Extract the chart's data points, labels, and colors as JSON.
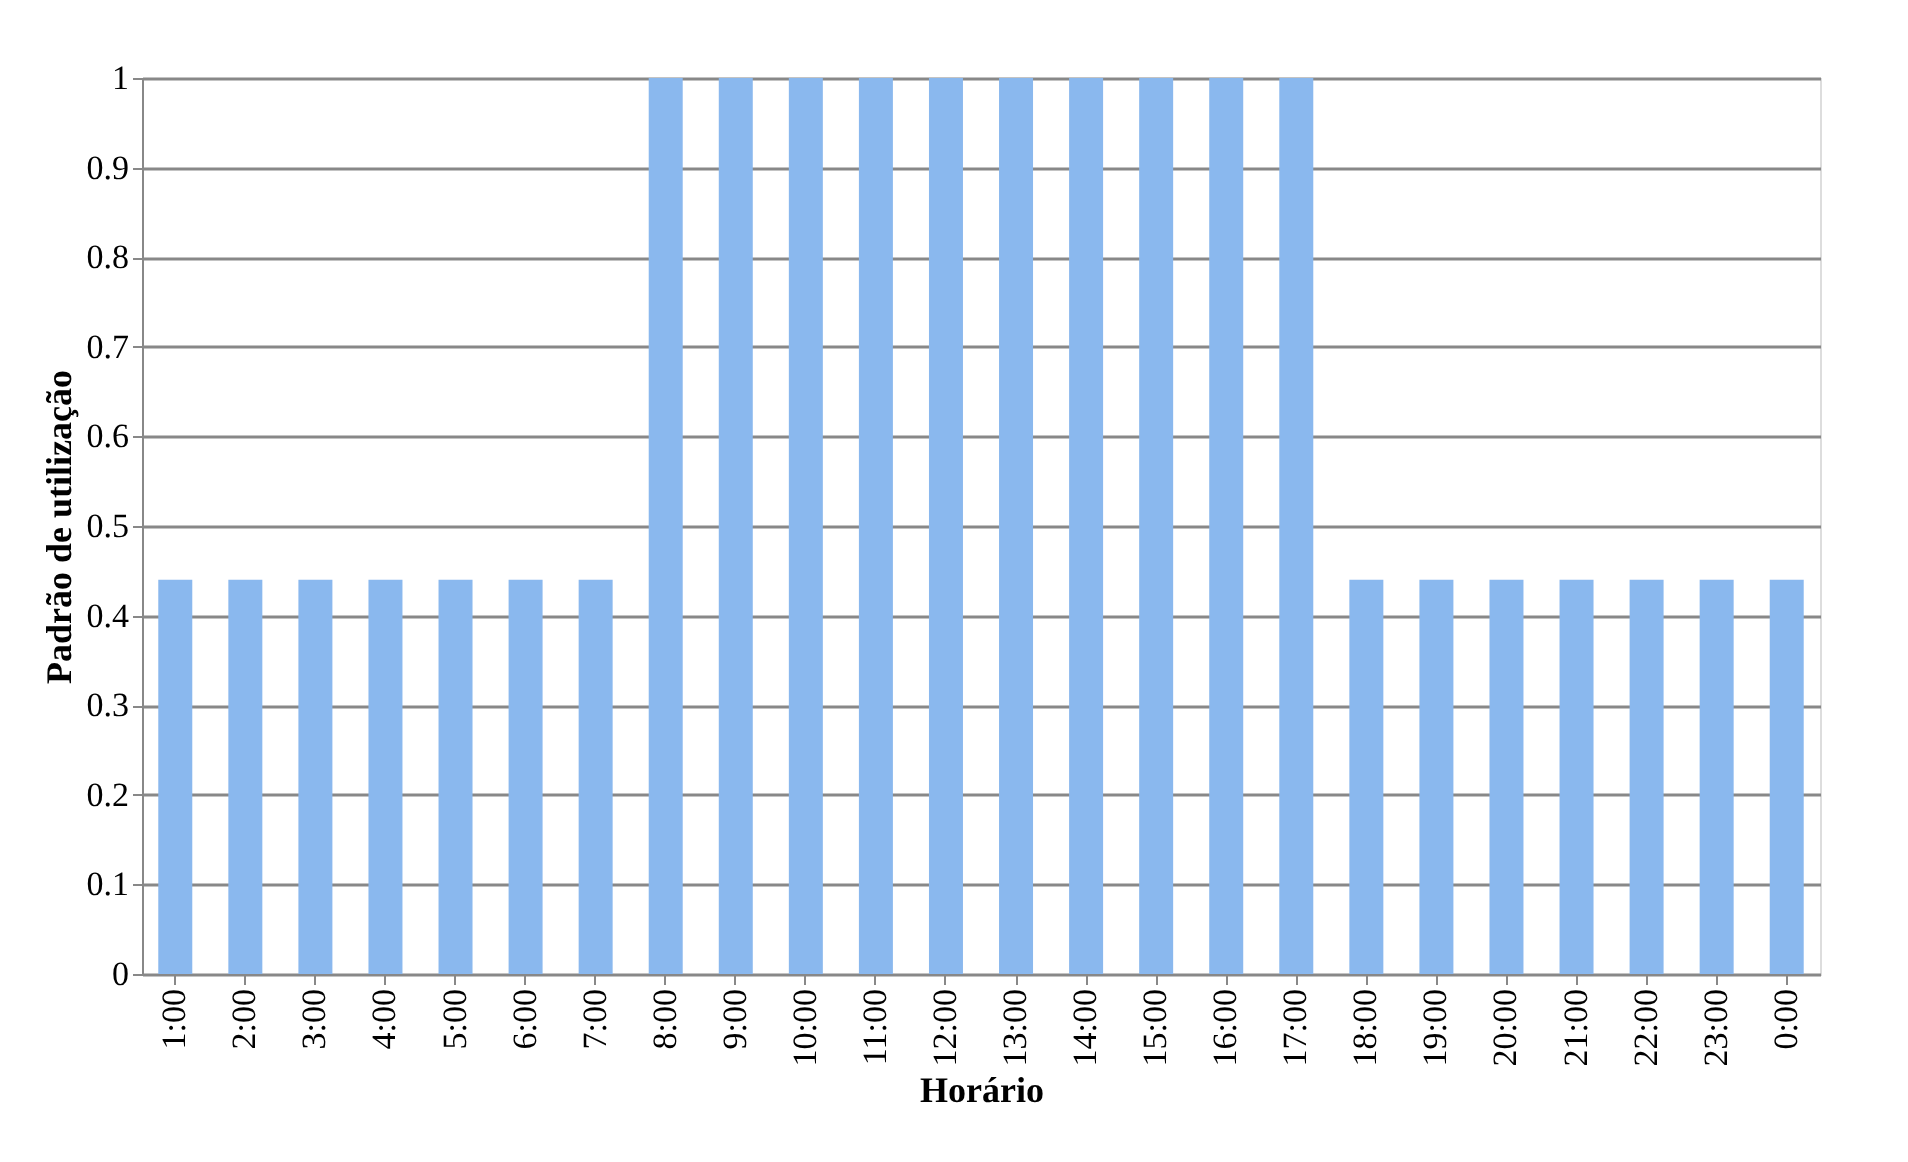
{
  "chart_data": {
    "type": "bar",
    "xlabel": "Horário",
    "ylabel": "Padrão de utilização",
    "categories": [
      "1:00",
      "2:00",
      "3:00",
      "4:00",
      "5:00",
      "6:00",
      "7:00",
      "8:00",
      "9:00",
      "10:00",
      "11:00",
      "12:00",
      "13:00",
      "14:00",
      "15:00",
      "16:00",
      "17:00",
      "18:00",
      "19:00",
      "20:00",
      "21:00",
      "22:00",
      "23:00",
      "0:00"
    ],
    "values": [
      0.44,
      0.44,
      0.44,
      0.44,
      0.44,
      0.44,
      0.44,
      1,
      1,
      1,
      1,
      1,
      1,
      1,
      1,
      1,
      1,
      0.44,
      0.44,
      0.44,
      0.44,
      0.44,
      0.44,
      0.44
    ],
    "color": "#8ab8ee",
    "ylim": [
      0,
      1
    ],
    "yticks": [
      0,
      0.1,
      0.2,
      0.3,
      0.4,
      0.5,
      0.6,
      0.7,
      0.8,
      0.9,
      1
    ],
    "grid": "y"
  }
}
